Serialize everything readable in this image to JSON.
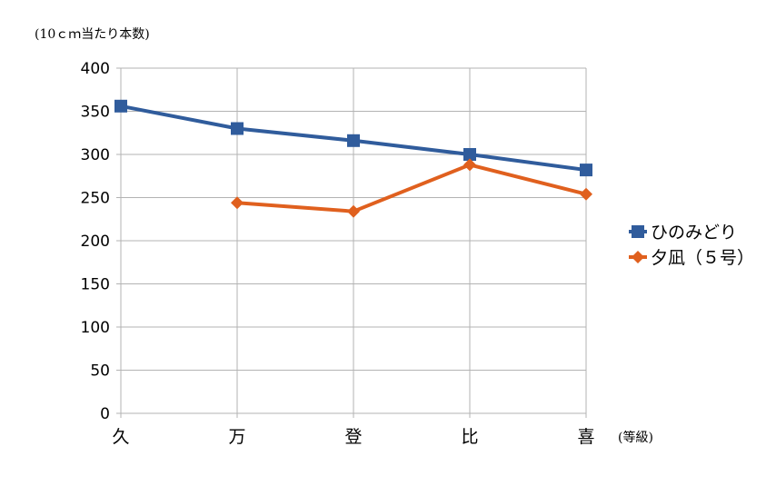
{
  "chart_data": {
    "type": "line",
    "title": "",
    "ylabel": "(10ｃｍ当たり本数)",
    "xlabel": "(等級)",
    "categories": [
      "久",
      "万",
      "登",
      "比",
      "喜"
    ],
    "ylim": [
      0,
      400
    ],
    "yticks": [
      0,
      50,
      100,
      150,
      200,
      250,
      300,
      350,
      400
    ],
    "grid": true,
    "legend": "right",
    "series": [
      {
        "name": "ひのみどり",
        "color": "#305c9c",
        "marker": "square",
        "values": [
          356,
          330,
          316,
          300,
          282
        ]
      },
      {
        "name": "夕凪（５号）",
        "color": "#e0601e",
        "marker": "diamond",
        "values": [
          null,
          244,
          234,
          288,
          254
        ]
      }
    ]
  }
}
